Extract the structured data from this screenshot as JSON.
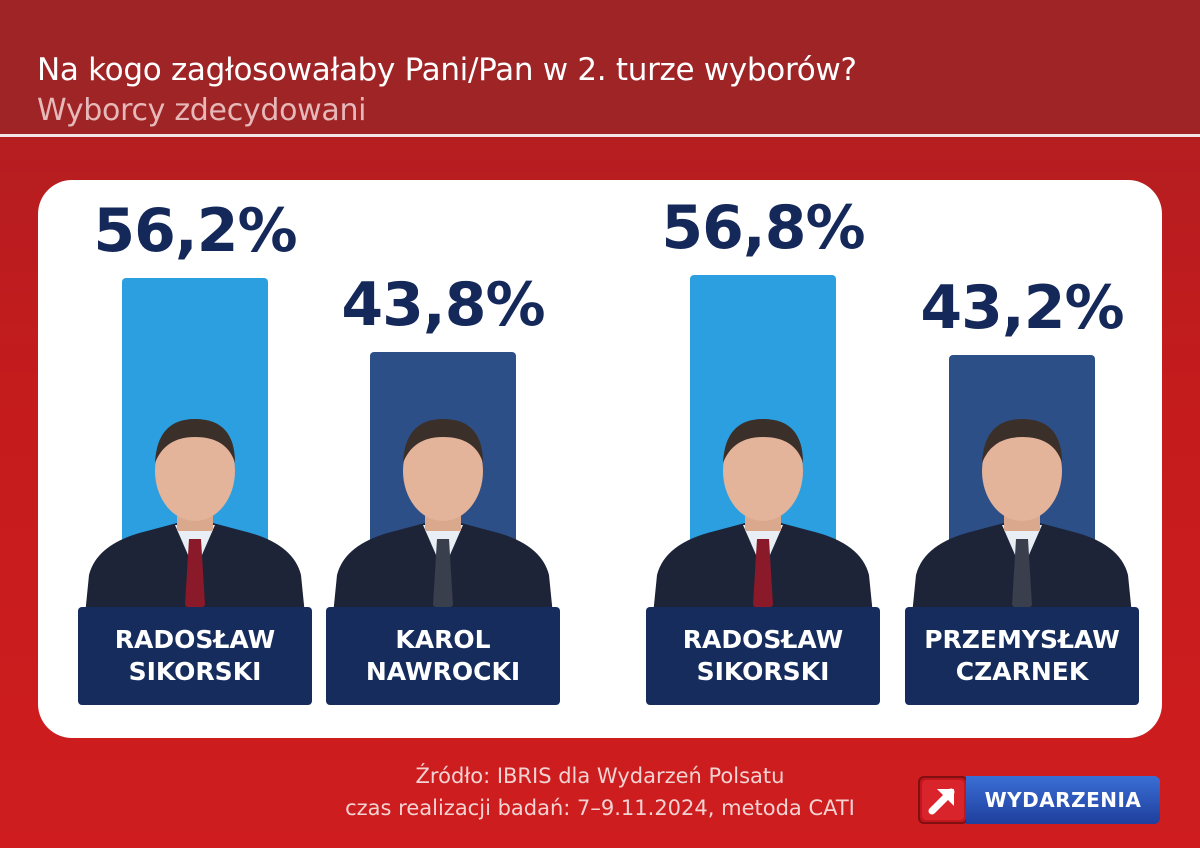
{
  "header": {
    "title": "Na kogo zagłosowałaby Pani/Pan w 2. turze wyborów?",
    "subtitle": "Wyborcy zdecydowani"
  },
  "colors": {
    "bar_light": "#2b9fe0",
    "bar_dark": "#2d4f87",
    "navy": "#162c5d",
    "background_red": "#c41b1d"
  },
  "chart_data": [
    {
      "type": "bar",
      "categories": [
        "RADOSŁAW SIKORSKI",
        "KAROL NAWROCKI"
      ],
      "values": [
        56.2,
        43.8
      ],
      "value_labels": [
        "56,2%",
        "43,8%"
      ],
      "name_lines": [
        [
          "RADOSŁAW",
          "SIKORSKI"
        ],
        [
          "KAROL",
          "NAWROCKI"
        ]
      ],
      "unit": "%",
      "ylim": [
        0,
        100
      ],
      "title": "",
      "xlabel": "",
      "ylabel": ""
    },
    {
      "type": "bar",
      "categories": [
        "RADOSŁAW SIKORSKI",
        "PRZEMYSŁAW CZARNEK"
      ],
      "values": [
        56.8,
        43.2
      ],
      "value_labels": [
        "56,8%",
        "43,2%"
      ],
      "name_lines": [
        [
          "RADOSŁAW",
          "SIKORSKI"
        ],
        [
          "PRZEMYSŁAW",
          "CZARNEK"
        ]
      ],
      "unit": "%",
      "ylim": [
        0,
        100
      ],
      "title": "",
      "xlabel": "",
      "ylabel": ""
    }
  ],
  "footer": {
    "source_line1": "Źródło: IBRIS dla Wydarzeń Polsatu",
    "source_line2": "czas realizacji badań: 7–9.11.2024, metoda CATI"
  },
  "logo": {
    "text": "WYDARZENIA",
    "icon": "arrow-up-right-icon"
  }
}
